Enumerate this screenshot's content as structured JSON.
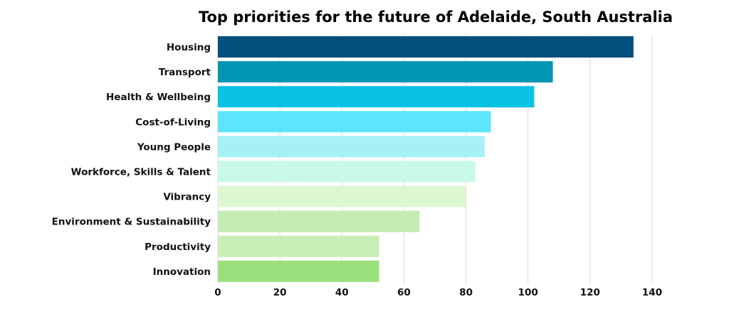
{
  "chart_data": {
    "type": "bar",
    "orientation": "horizontal",
    "title": "Top priorities for the future of Adelaide, South Australia",
    "xlabel": "",
    "ylabel": "",
    "categories": [
      "Housing",
      "Transport",
      "Health & Wellbeing",
      "Cost-of-Living",
      "Young People",
      "Workforce, Skills & Talent",
      "Vibrancy",
      "Environment & Sustainability",
      "Productivity",
      "Innovation"
    ],
    "values": [
      134,
      108,
      102,
      88,
      86,
      83,
      80,
      65,
      52,
      52
    ],
    "colors": [
      "#004f7c",
      "#0096b4",
      "#0cc2e2",
      "#5ce5fc",
      "#a6f1f3",
      "#c8fae7",
      "#dcf6d1",
      "#c2ecb2",
      "#c7efb6",
      "#99e07d"
    ],
    "xlim": [
      0,
      140
    ],
    "xticks": [
      0,
      20,
      40,
      60,
      80,
      100,
      120,
      140
    ],
    "grid": true,
    "legend": "none"
  }
}
